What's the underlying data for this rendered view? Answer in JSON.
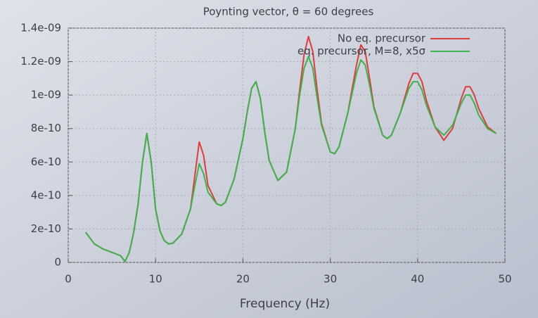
{
  "chart_data": {
    "type": "line",
    "title": "Poynting vector, θ = 60 degrees",
    "x_label": "Frequency (Hz)",
    "x": [
      2,
      3,
      4,
      5,
      6,
      6.5,
      7,
      7.5,
      8,
      8.5,
      9,
      9.5,
      10,
      10.5,
      11,
      11.5,
      12,
      13,
      14,
      14.5,
      15,
      15.5,
      16,
      17,
      17.5,
      18,
      19,
      20,
      20.5,
      21,
      21.5,
      22,
      22.5,
      23,
      24,
      25,
      26,
      26.5,
      27,
      27.5,
      28,
      28.5,
      29,
      30,
      30.5,
      31,
      32,
      33,
      33.5,
      34,
      34.5,
      35,
      36,
      36.5,
      37,
      38,
      39,
      39.5,
      40,
      40.5,
      41,
      42,
      43,
      44,
      45,
      45.5,
      46,
      46.5,
      47,
      48,
      49
    ],
    "series": [
      {
        "name": "No eq. precursor",
        "color": "#e03c3c",
        "values": [
          1.8e-10,
          1.1e-10,
          8e-11,
          6e-11,
          4e-11,
          5e-12,
          6e-11,
          1.8e-10,
          3.5e-10,
          6e-10,
          7.7e-10,
          6e-10,
          3.2e-10,
          1.9e-10,
          1.3e-10,
          1.1e-10,
          1.15e-10,
          1.7e-10,
          3.2e-10,
          5.2e-10,
          7.2e-10,
          6.4e-10,
          4.6e-10,
          3.5e-10,
          3.4e-10,
          3.6e-10,
          5e-10,
          7.4e-10,
          9e-10,
          1.04e-09,
          1.08e-09,
          9.8e-10,
          7.8e-10,
          6.1e-10,
          4.9e-10,
          5.4e-10,
          8e-10,
          1.03e-09,
          1.24e-09,
          1.35e-09,
          1.26e-09,
          1.03e-09,
          8.3e-10,
          6.6e-10,
          6.5e-10,
          6.9e-10,
          8.9e-10,
          1.18e-09,
          1.3e-09,
          1.26e-09,
          1.1e-09,
          9.3e-10,
          7.6e-10,
          7.4e-10,
          7.6e-10,
          8.9e-10,
          1.07e-09,
          1.13e-09,
          1.13e-09,
          1.08e-09,
          9.7e-10,
          8.1e-10,
          7.3e-10,
          8e-10,
          9.8e-10,
          1.05e-09,
          1.05e-09,
          1e-09,
          9.2e-10,
          8.1e-10,
          7.7e-10
        ]
      },
      {
        "name": "eq. precursor, M=8, x5σ",
        "color": "#3cb44b",
        "values": [
          1.8e-10,
          1.1e-10,
          8e-11,
          6e-11,
          4e-11,
          5e-12,
          6e-11,
          1.8e-10,
          3.5e-10,
          6e-10,
          7.7e-10,
          6e-10,
          3.2e-10,
          1.9e-10,
          1.3e-10,
          1.1e-10,
          1.15e-10,
          1.7e-10,
          3.2e-10,
          4.6e-10,
          5.9e-10,
          5.3e-10,
          4.2e-10,
          3.5e-10,
          3.4e-10,
          3.6e-10,
          5e-10,
          7.4e-10,
          9e-10,
          1.04e-09,
          1.08e-09,
          9.8e-10,
          7.8e-10,
          6.1e-10,
          4.9e-10,
          5.4e-10,
          8e-10,
          1e-09,
          1.16e-09,
          1.23e-09,
          1.16e-09,
          9.8e-10,
          8.2e-10,
          6.6e-10,
          6.5e-10,
          6.9e-10,
          8.9e-10,
          1.13e-09,
          1.21e-09,
          1.18e-09,
          1.06e-09,
          9.2e-10,
          7.6e-10,
          7.4e-10,
          7.6e-10,
          8.9e-10,
          1.04e-09,
          1.08e-09,
          1.08e-09,
          1.03e-09,
          9.4e-10,
          8.1e-10,
          7.6e-10,
          8.2e-10,
          9.5e-10,
          1e-09,
          1e-09,
          9.5e-10,
          8.8e-10,
          8e-10,
          7.7e-10
        ]
      }
    ],
    "xlim": [
      0,
      50
    ],
    "xticks": [
      0,
      10,
      20,
      30,
      40,
      50
    ],
    "ylim": [
      0,
      1.4e-09
    ],
    "yticks": [
      0,
      2e-10,
      4e-10,
      6e-10,
      8e-10,
      {
        "value": 1e-09,
        "label": "1e-09"
      },
      {
        "value": 1.2e-09,
        "label": "1.2e-09"
      },
      {
        "value": 1.4e-09,
        "label": "1.4e-09"
      }
    ],
    "grid": true,
    "legend": "top-right"
  }
}
